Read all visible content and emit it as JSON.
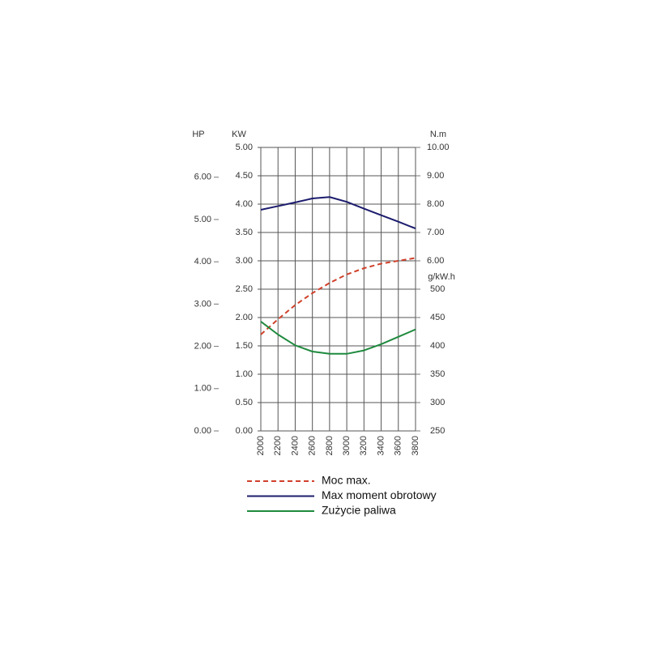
{
  "chart_data": {
    "type": "line",
    "x": [
      2000,
      2200,
      2400,
      2600,
      2800,
      3000,
      3200,
      3400,
      3600,
      3800
    ],
    "xlim": [
      2000,
      3800
    ],
    "xticks": [
      2000,
      2200,
      2400,
      2600,
      2800,
      3000,
      3200,
      3400,
      3600,
      3800
    ],
    "ylabel": "KW",
    "ylim": [
      0,
      5
    ],
    "yticks": [
      {
        "value": 0,
        "label": "0.00"
      },
      {
        "value": 0.5,
        "label": "0.50"
      },
      {
        "value": 1,
        "label": "1.00"
      },
      {
        "value": 1.5,
        "label": "1.50"
      },
      {
        "value": 2,
        "label": "2.00"
      },
      {
        "value": 2.5,
        "label": "2.50"
      },
      {
        "value": 3,
        "label": "3.00"
      },
      {
        "value": 3.5,
        "label": "3.50"
      },
      {
        "value": 4,
        "label": "4.00"
      },
      {
        "value": 4.5,
        "label": "4.50"
      },
      {
        "value": 5,
        "label": "5.00"
      }
    ],
    "hplabel": "HP",
    "hplim": [
      0,
      6.705
    ],
    "hpticks": [
      {
        "value": 0,
        "label": "0.00"
      },
      {
        "value": 1,
        "label": "1.00"
      },
      {
        "value": 2,
        "label": "2.00"
      },
      {
        "value": 3,
        "label": "3.00"
      },
      {
        "value": 4,
        "label": "4.00"
      },
      {
        "value": 5,
        "label": "5.00"
      },
      {
        "value": 6,
        "label": "6.00"
      }
    ],
    "y2label": "N.m",
    "y2lim": [
      6,
      10
    ],
    "y2ticks": [
      {
        "value": 6,
        "label": "6.00"
      },
      {
        "value": 7,
        "label": "7.00"
      },
      {
        "value": 8,
        "label": "8.00"
      },
      {
        "value": 9,
        "label": "9.00"
      },
      {
        "value": 10,
        "label": "10.00"
      }
    ],
    "y3label": "g/kW.h",
    "y3lim": [
      250,
      500
    ],
    "y3ticks": [
      250,
      300,
      350,
      400,
      450,
      500
    ],
    "grid": true,
    "series": [
      {
        "name": "Moc max.",
        "color": "#d0402a",
        "dashed": true,
        "axis": "y",
        "values": [
          1.7,
          1.97,
          2.22,
          2.43,
          2.61,
          2.76,
          2.87,
          2.95,
          3.0,
          3.05
        ]
      },
      {
        "name": "Max moment obrotowy",
        "color": "#1c1c6e",
        "dashed": false,
        "axis": "y2",
        "values": [
          7.8,
          7.93,
          8.06,
          8.2,
          8.25,
          8.08,
          7.84,
          7.61,
          7.38,
          7.14
        ]
      },
      {
        "name": "Zużycie paliwa",
        "color": "#1f8a3e",
        "dashed": false,
        "axis": "y3",
        "values": [
          443,
          420,
          401,
          390,
          386,
          386,
          392,
          403,
          416,
          429
        ]
      }
    ]
  }
}
